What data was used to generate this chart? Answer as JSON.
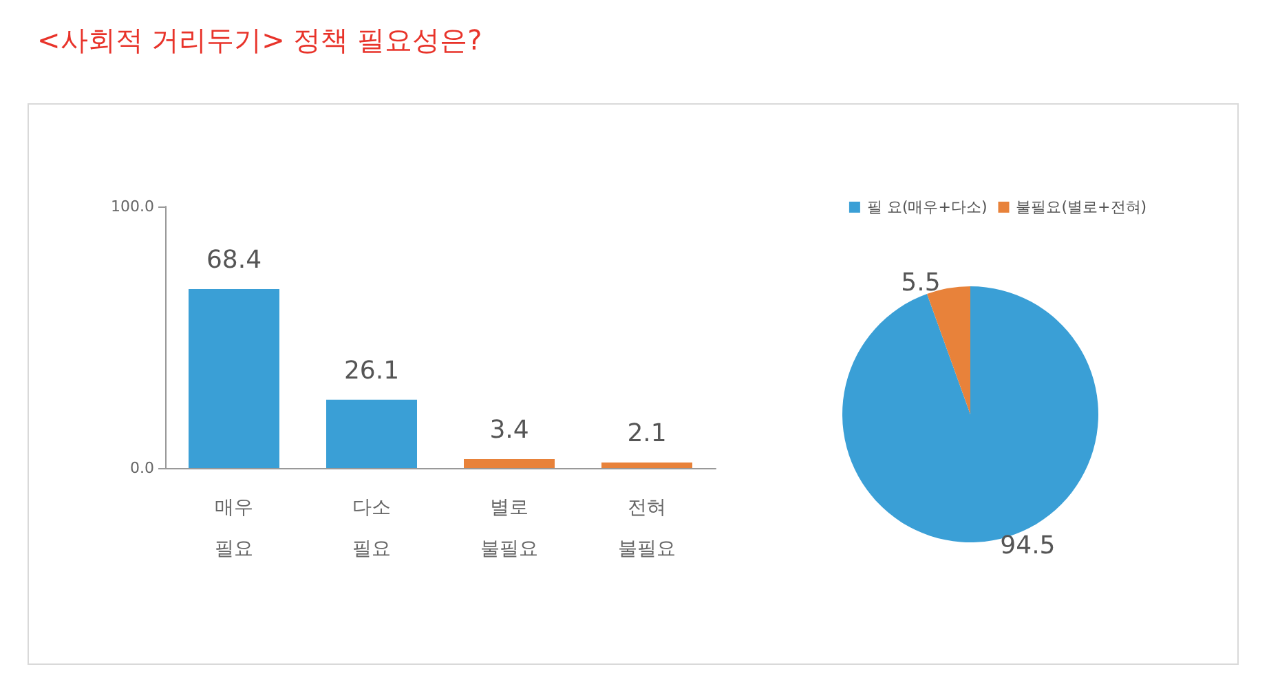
{
  "chart_data": [
    {
      "type": "bar",
      "title": "<사회적 거리두기> 정책 필요성은?",
      "categories": [
        "매우\n필요",
        "다소\n필요",
        "별로\n불필요",
        "전혀\n불필요"
      ],
      "values": [
        68.4,
        26.1,
        3.4,
        2.1
      ],
      "colors": [
        "#3a9fd6",
        "#3a9fd6",
        "#e8823a",
        "#e8823a"
      ],
      "ylim": [
        0,
        100
      ],
      "yticks": [
        {
          "value": 0,
          "label": "0.0"
        },
        {
          "value": 100,
          "label": "100.0"
        }
      ],
      "data_labels": true,
      "grid": false,
      "legend": false
    },
    {
      "type": "pie",
      "categories": [
        "필 요(매우+다소)",
        "불필요(별로+전혀)"
      ],
      "values": [
        94.5,
        5.5
      ],
      "colors": [
        "#3a9fd6",
        "#e8823a"
      ],
      "data_labels": true,
      "legend": "top"
    }
  ]
}
